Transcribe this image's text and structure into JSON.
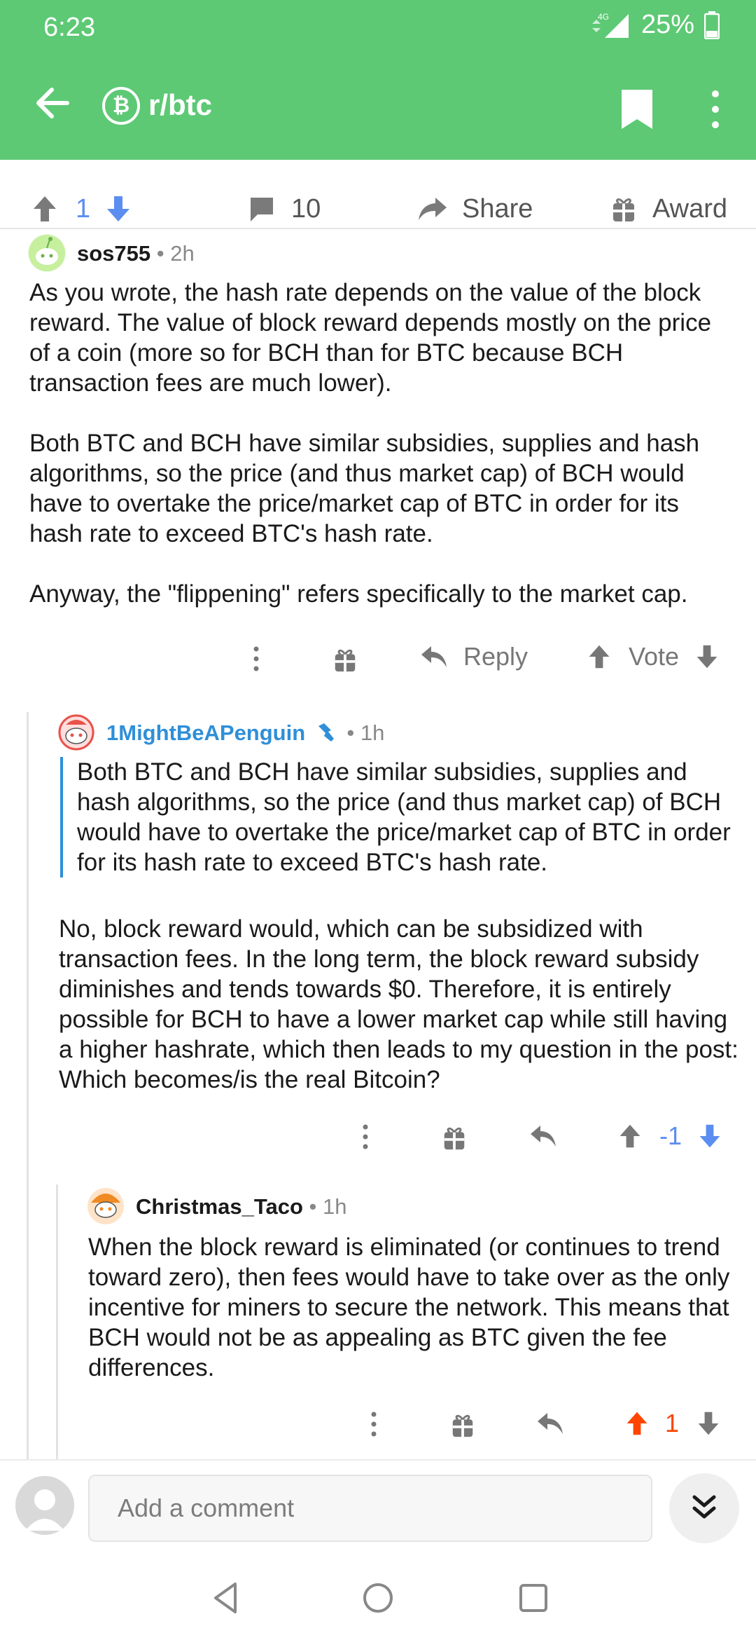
{
  "status_bar": {
    "time": "6:23",
    "network": "4G",
    "battery": "25%"
  },
  "header": {
    "subreddit": "r/btc",
    "subreddit_icon_glyph": "₿",
    "back_icon": "arrow-left-icon",
    "bookmark_icon": "bookmark-icon",
    "more_icon": "more-vertical-icon"
  },
  "post_actions": {
    "score": "1",
    "comments": "10",
    "share": "Share",
    "award": "Award"
  },
  "comments": [
    {
      "username": "sos755",
      "time": "2h",
      "paragraphs": [
        "As you wrote, the hash rate depends on the value of the block reward. The value of block reward depends mostly on the price of a coin (more so for BCH than for BTC because BCH transaction fees are much lower).",
        "Both BTC and BCH have similar subsidies, supplies and hash algorithms, so the price (and thus market cap) of BCH would have to overtake the price/market cap of BTC in order for its hash rate to exceed BTC's hash rate.",
        "Anyway, the \"flippening\" refers specifically to the market cap."
      ],
      "reply": "Reply",
      "vote": "Vote"
    },
    {
      "username": "1MightBeAPenguin",
      "time": "1h",
      "quote": "Both BTC and BCH have similar subsidies, supplies and hash algorithms, so the price (and thus market cap) of BCH would have to overtake the price/market cap of BTC in order for its hash rate to exceed BTC's hash rate.",
      "paragraphs": [
        "No, block reward would, which can be subsidized with transaction fees. In the long term, the block reward subsidy diminishes and tends towards $0. Therefore, it is entirely possible for BCH to have a lower market cap while still having a higher hashrate, which then leads to my question in the post: Which becomes/is the real Bitcoin?"
      ],
      "score": "-1"
    },
    {
      "username": "Christmas_Taco",
      "time": "1h",
      "paragraphs": [
        "When the block reward is eliminated (or continues to trend toward zero), then fees would have to take over as the only incentive for miners to secure the network. This means that BCH would not be as appealing as BTC given the fee differences."
      ],
      "score": "1"
    }
  ],
  "composer": {
    "placeholder": "Add a comment"
  },
  "colors": {
    "header_green": "#5dc974",
    "link_blue": "#2f8fd8",
    "vote_blue": "#5b8ef0",
    "upvote_orange": "#ff4500"
  }
}
